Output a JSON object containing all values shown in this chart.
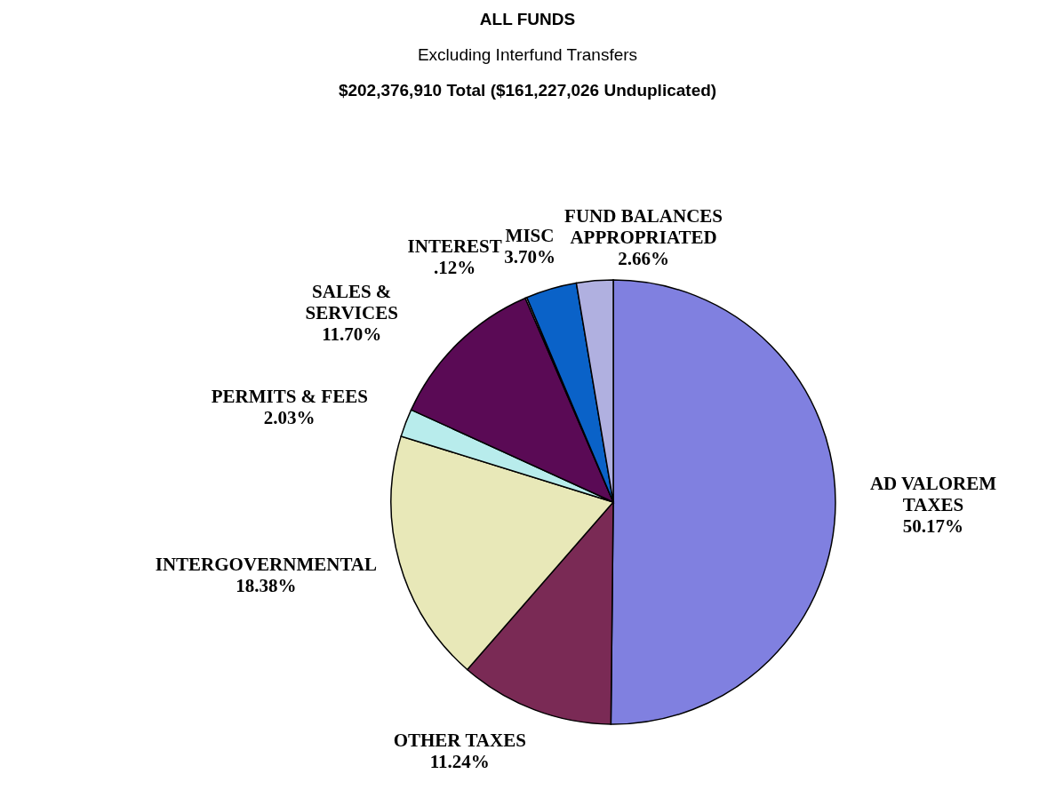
{
  "chart_data": {
    "type": "pie",
    "title": "ALL FUNDS",
    "subtitle": "Excluding Interfund Transfers",
    "annotations": [
      "$202,376,910 Total    ($161,227,026 Unduplicated)"
    ],
    "categories": [
      "AD VALOREM TAXES",
      "OTHER TAXES",
      "INTERGOVERNMENTAL",
      "PERMITS & FEES",
      "SALES & SERVICES",
      "INTEREST",
      "MISC",
      "FUND BALANCES APPROPRIATED"
    ],
    "values": [
      50.17,
      11.24,
      18.38,
      2.03,
      11.7,
      0.12,
      3.7,
      2.66
    ],
    "value_labels": [
      "50.17%",
      "11.24%",
      "18.38%",
      "2.03%",
      "11.70%",
      ".12%",
      "3.70%",
      "2.66%"
    ],
    "colors": [
      "#8080e0",
      "#7a2a55",
      "#e8e8b8",
      "#b8ecec",
      "#5a0a55",
      "#dcdcf0",
      "#0a62c8",
      "#b0b0e0"
    ]
  }
}
